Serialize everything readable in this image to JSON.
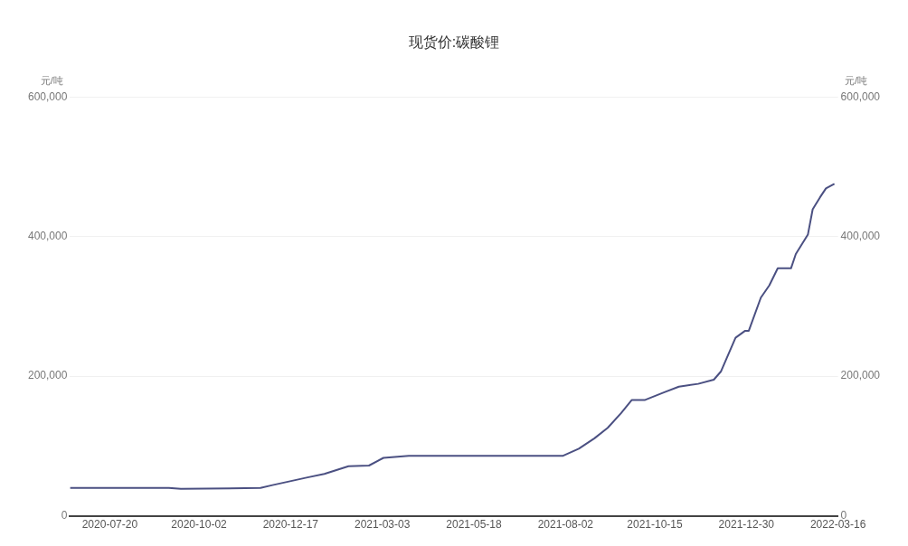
{
  "chart_data": {
    "type": "line",
    "title": "现货价:碳酸锂",
    "ylabel": "元/吨",
    "y2label": "元/吨",
    "x": [
      "2020-06-17",
      "2020-09-07",
      "2020-09-17",
      "2020-11-22",
      "2020-12-02",
      "2020-12-31",
      "2021-01-14",
      "2021-02-03",
      "2021-02-20",
      "2021-03-04",
      "2021-03-25",
      "2021-04-28",
      "2021-07-31",
      "2021-08-13",
      "2021-08-26",
      "2021-09-06",
      "2021-09-17",
      "2021-09-26",
      "2021-10-07",
      "2021-10-23",
      "2021-11-04",
      "2021-11-20",
      "2021-12-03",
      "2021-12-09",
      "2021-12-15",
      "2021-12-21",
      "2021-12-29",
      "2022-01-01",
      "2022-01-11",
      "2022-01-18",
      "2022-01-25",
      "2022-02-05",
      "2022-02-09",
      "2022-02-19",
      "2022-02-23",
      "2022-03-01",
      "2022-03-06",
      "2022-03-13"
    ],
    "series": [
      {
        "color": "#4b5082",
        "values": [
          40000,
          40000,
          38500,
          40000,
          44000,
          55000,
          60000,
          71000,
          72000,
          83000,
          86000,
          86000,
          86000,
          96000,
          111000,
          126000,
          147000,
          166000,
          166000,
          177000,
          185000,
          189000,
          195000,
          207000,
          231000,
          255000,
          265000,
          265000,
          312500,
          330000,
          354500,
          354500,
          375000,
          402700,
          439000,
          456000,
          469000,
          475500
        ]
      }
    ],
    "xlim": [
      "2020-06-17",
      "2022-03-16"
    ],
    "xticks": [
      "2020-07-20",
      "2020-10-02",
      "2020-12-17",
      "2021-03-03",
      "2021-05-18",
      "2021-08-02",
      "2021-10-15",
      "2021-12-30",
      "2022-03-16"
    ],
    "ylim": [
      0,
      600000
    ],
    "yticks": [
      {
        "value": 0,
        "label": "0"
      },
      {
        "value": 200000,
        "label": "200,000"
      },
      {
        "value": 400000,
        "label": "400,000"
      },
      {
        "value": 600000,
        "label": "600,000"
      }
    ],
    "y2lim": [
      0,
      600000
    ],
    "y2ticks": [
      {
        "value": 0,
        "label": "0"
      },
      {
        "value": 200000,
        "label": "200,000"
      },
      {
        "value": 400000,
        "label": "400,000"
      },
      {
        "value": 600000,
        "label": "600,000"
      }
    ],
    "grid": "y",
    "legend": false,
    "marker": "none",
    "line_style": "solid"
  }
}
